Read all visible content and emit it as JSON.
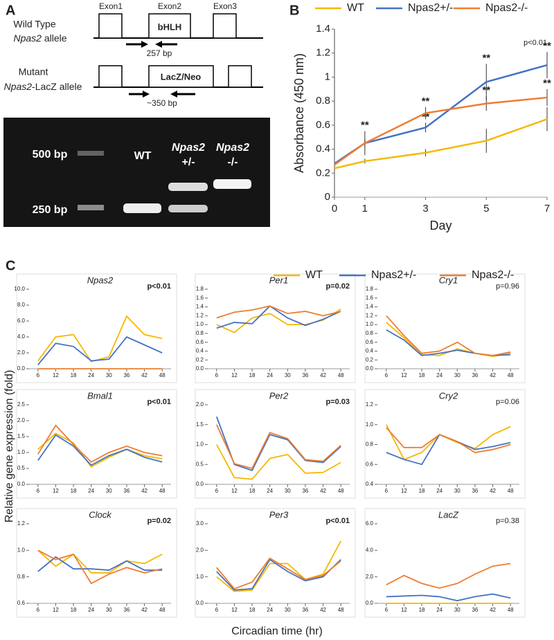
{
  "panel_labels": [
    "A",
    "B",
    "C"
  ],
  "diagram": {
    "exons": [
      "Exon1",
      "Exon2",
      "Exon3"
    ],
    "domain": "bHLH",
    "wt_line1": "Wild Type",
    "wt_gene": "Npas2",
    "wt_suffix": " allele",
    "wt_product": "257 bp",
    "mut_line1": "Mutant",
    "mut_gene": "Npas2",
    "mut_suffix": "-LacZ allele",
    "mut_cassette": "LacZ/Neo",
    "mut_product": "~350 bp"
  },
  "gel": {
    "ladder": [
      "500 bp",
      "250 bp"
    ],
    "lane_wt": "WT",
    "lane_het_gene": "Npas2",
    "lane_het": "+/-",
    "lane_ko_gene": "Npas2",
    "lane_ko": "-/-"
  },
  "panel_c": {
    "ylabel": "Relative gene expression (fold)",
    "xlabel": "Circadian time (hr)"
  },
  "chart_data": [
    {
      "type": "line",
      "xlabel": "Day",
      "ylabel": "Absorbance (450 nm)",
      "annotation": "p<0.01",
      "x": [
        0,
        1,
        3,
        5,
        7
      ],
      "xlim": [
        0,
        7
      ],
      "xticks": [
        0,
        1,
        3,
        5,
        7
      ],
      "ylim": [
        0,
        1.4
      ],
      "yticks": [
        0,
        0.2,
        0.4,
        0.6,
        0.8,
        1,
        1.2,
        1.4
      ],
      "series": [
        {
          "name": "WT",
          "color": "#f5b800",
          "values": [
            0.24,
            0.3,
            0.37,
            0.47,
            0.65
          ],
          "errors": [
            0.01,
            0.02,
            0.03,
            0.1,
            0.1
          ]
        },
        {
          "name": "Npas2+/-",
          "color": "#4472c4",
          "values": [
            0.28,
            0.45,
            0.58,
            0.96,
            1.1
          ],
          "errors": [
            0.01,
            0.1,
            0.04,
            0.15,
            0.11
          ],
          "sig": [
            null,
            "**",
            "**",
            "**",
            "**"
          ]
        },
        {
          "name": "Npas2-/-",
          "color": "#ed7d31",
          "values": [
            0.27,
            0.45,
            0.7,
            0.78,
            0.83
          ],
          "errors": [
            0.01,
            0.03,
            0.05,
            0.06,
            0.07
          ],
          "sig": [
            null,
            null,
            "**",
            "**",
            "**"
          ]
        }
      ]
    },
    {
      "type": "line",
      "title": "Npas2",
      "annotation": "p<0.01",
      "annotation_bold": true,
      "x": [
        6,
        12,
        18,
        24,
        30,
        36,
        42,
        48
      ],
      "xlim": [
        3,
        51
      ],
      "xticks": [
        6,
        12,
        18,
        24,
        30,
        36,
        42,
        48
      ],
      "ylim": [
        0,
        10
      ],
      "yticks": [
        {
          "value": 0,
          "label": "0.0"
        },
        {
          "value": 2,
          "label": "2.0"
        },
        {
          "value": 4,
          "label": "4.0"
        },
        {
          "value": 6,
          "label": "6.0"
        },
        {
          "value": 8,
          "label": "8.0"
        },
        {
          "value": 10,
          "label": "10.0"
        }
      ],
      "series": [
        {
          "name": "WT",
          "color": "#f5b800",
          "values": [
            1.0,
            4.0,
            4.3,
            0.9,
            1.5,
            6.6,
            4.3,
            3.8
          ]
        },
        {
          "name": "Npas2+/-",
          "color": "#4472c4",
          "values": [
            0.5,
            3.2,
            2.8,
            1.0,
            1.2,
            4.0,
            3.0,
            2.0
          ]
        },
        {
          "name": "Npas2-/-",
          "color": "#ed7d31",
          "values": [
            0,
            0,
            0,
            0,
            0,
            0,
            0,
            0
          ]
        }
      ]
    },
    {
      "type": "line",
      "title": "Per1",
      "annotation": "p=0.02",
      "annotation_bold": true,
      "x": [
        6,
        12,
        18,
        24,
        30,
        36,
        42,
        48
      ],
      "xlim": [
        3,
        51
      ],
      "xticks": [
        6,
        12,
        18,
        24,
        30,
        36,
        42,
        48
      ],
      "ylim": [
        0,
        1.8
      ],
      "yticks": [
        {
          "value": 0,
          "label": "0.0"
        },
        0.2,
        0.4,
        0.6,
        0.8,
        {
          "value": 1,
          "label": "1.0"
        },
        1.2,
        1.4,
        1.6,
        1.8
      ],
      "series": [
        {
          "color": "#f5b800",
          "values": [
            1.0,
            0.82,
            1.15,
            1.25,
            1.0,
            1.0,
            1.1,
            1.35
          ]
        },
        {
          "color": "#4472c4",
          "values": [
            0.92,
            1.05,
            1.02,
            1.42,
            1.15,
            0.98,
            1.12,
            1.3
          ]
        },
        {
          "color": "#ed7d31",
          "values": [
            1.15,
            1.28,
            1.33,
            1.42,
            1.25,
            1.3,
            1.2,
            1.3
          ]
        }
      ]
    },
    {
      "type": "line",
      "title": "Cry1",
      "annotation": "p=0.96",
      "annotation_bold": false,
      "x": [
        6,
        12,
        18,
        24,
        30,
        36,
        42,
        48
      ],
      "xlim": [
        3,
        51
      ],
      "xticks": [
        6,
        12,
        18,
        24,
        30,
        36,
        42,
        48
      ],
      "ylim": [
        0,
        1.8
      ],
      "yticks": [
        {
          "value": 0,
          "label": "0.0"
        },
        0.2,
        0.4,
        0.6,
        0.8,
        {
          "value": 1,
          "label": "1.0"
        },
        1.2,
        1.4,
        1.6,
        1.8
      ],
      "series": [
        {
          "color": "#f5b800",
          "values": [
            1.05,
            0.7,
            0.32,
            0.3,
            0.45,
            0.35,
            0.28,
            0.35
          ]
        },
        {
          "color": "#4472c4",
          "values": [
            0.88,
            0.65,
            0.3,
            0.35,
            0.42,
            0.35,
            0.3,
            0.32
          ]
        },
        {
          "color": "#ed7d31",
          "values": [
            1.2,
            0.75,
            0.35,
            0.4,
            0.6,
            0.35,
            0.3,
            0.38
          ]
        }
      ]
    },
    {
      "type": "line",
      "title": "Bmal1",
      "annotation": "p<0.01",
      "annotation_bold": true,
      "x": [
        6,
        12,
        18,
        24,
        30,
        36,
        42,
        48
      ],
      "xlim": [
        3,
        51
      ],
      "xticks": [
        6,
        12,
        18,
        24,
        30,
        36,
        42,
        48
      ],
      "ylim": [
        0,
        2.5
      ],
      "yticks": [
        {
          "value": 0,
          "label": "0.0"
        },
        0.5,
        {
          "value": 1,
          "label": "1.0"
        },
        1.5,
        {
          "value": 2,
          "label": "2.0"
        },
        2.5
      ],
      "series": [
        {
          "color": "#f5b800",
          "values": [
            1.1,
            1.6,
            1.3,
            0.55,
            0.85,
            1.1,
            0.9,
            0.8
          ]
        },
        {
          "color": "#4472c4",
          "values": [
            0.75,
            1.55,
            1.2,
            0.6,
            0.9,
            1.1,
            0.85,
            0.7
          ]
        },
        {
          "color": "#ed7d31",
          "values": [
            0.95,
            1.85,
            1.25,
            0.7,
            1.0,
            1.2,
            1.0,
            0.9
          ]
        }
      ]
    },
    {
      "type": "line",
      "title": "Per2",
      "annotation": "p=0.03",
      "annotation_bold": true,
      "x": [
        6,
        12,
        18,
        24,
        30,
        36,
        42,
        48
      ],
      "xlim": [
        3,
        51
      ],
      "xticks": [
        6,
        12,
        18,
        24,
        30,
        36,
        42,
        48
      ],
      "ylim": [
        0,
        2
      ],
      "yticks": [
        {
          "value": 0,
          "label": "0.0"
        },
        0.5,
        {
          "value": 1,
          "label": "1.0"
        },
        1.5,
        {
          "value": 2,
          "label": "2.0"
        }
      ],
      "series": [
        {
          "color": "#f5b800",
          "values": [
            1.0,
            0.17,
            0.13,
            0.65,
            0.75,
            0.28,
            0.3,
            0.55
          ]
        },
        {
          "color": "#4472c4",
          "values": [
            1.7,
            0.5,
            0.35,
            1.25,
            1.12,
            0.6,
            0.55,
            0.95
          ]
        },
        {
          "color": "#ed7d31",
          "values": [
            1.5,
            0.52,
            0.4,
            1.3,
            1.15,
            0.62,
            0.58,
            0.98
          ]
        }
      ]
    },
    {
      "type": "line",
      "title": "Cry2",
      "annotation": "p=0.06",
      "annotation_bold": false,
      "x": [
        6,
        12,
        18,
        24,
        30,
        36,
        42,
        48
      ],
      "xlim": [
        3,
        51
      ],
      "xticks": [
        6,
        12,
        18,
        24,
        30,
        36,
        42,
        48
      ],
      "ylim": [
        0.4,
        1.2
      ],
      "yticks": [
        0.4,
        0.6,
        0.8,
        {
          "value": 1,
          "label": "1.0"
        },
        1.2
      ],
      "series": [
        {
          "color": "#f5b800",
          "values": [
            1.0,
            0.65,
            0.72,
            0.9,
            0.82,
            0.76,
            0.9,
            0.98
          ]
        },
        {
          "color": "#4472c4",
          "values": [
            0.72,
            0.65,
            0.6,
            0.9,
            0.83,
            0.75,
            0.78,
            0.82
          ]
        },
        {
          "color": "#ed7d31",
          "values": [
            0.97,
            0.77,
            0.77,
            0.9,
            0.83,
            0.72,
            0.75,
            0.8
          ]
        }
      ]
    },
    {
      "type": "line",
      "title": "Clock",
      "annotation": "p=0.02",
      "annotation_bold": true,
      "x": [
        6,
        12,
        18,
        24,
        30,
        36,
        42,
        48
      ],
      "xlim": [
        3,
        51
      ],
      "xticks": [
        6,
        12,
        18,
        24,
        30,
        36,
        42,
        48
      ],
      "ylim": [
        0.6,
        1.2
      ],
      "yticks": [
        0.6,
        0.8,
        {
          "value": 1,
          "label": "1.0"
        },
        1.2
      ],
      "series": [
        {
          "color": "#f5b800",
          "values": [
            1.0,
            0.88,
            0.97,
            0.83,
            0.83,
            0.92,
            0.9,
            0.97
          ]
        },
        {
          "color": "#4472c4",
          "values": [
            0.84,
            0.95,
            0.86,
            0.86,
            0.85,
            0.92,
            0.85,
            0.85
          ]
        },
        {
          "color": "#ed7d31",
          "values": [
            1.0,
            0.93,
            0.97,
            0.75,
            0.82,
            0.87,
            0.83,
            0.86
          ]
        }
      ]
    },
    {
      "type": "line",
      "title": "Per3",
      "annotation": "p<0.01",
      "annotation_bold": true,
      "x": [
        6,
        12,
        18,
        24,
        30,
        36,
        42,
        48
      ],
      "xlim": [
        3,
        51
      ],
      "xticks": [
        6,
        12,
        18,
        24,
        30,
        36,
        42,
        48
      ],
      "ylim": [
        0,
        3
      ],
      "yticks": [
        {
          "value": 0,
          "label": "0.0"
        },
        {
          "value": 1,
          "label": "1.0"
        },
        {
          "value": 2,
          "label": "2.0"
        },
        {
          "value": 3,
          "label": "3.0"
        }
      ],
      "series": [
        {
          "color": "#f5b800",
          "values": [
            1.0,
            0.45,
            0.5,
            1.5,
            1.5,
            0.9,
            1.1,
            2.35
          ]
        },
        {
          "color": "#4472c4",
          "values": [
            1.2,
            0.5,
            0.55,
            1.65,
            1.2,
            0.85,
            1.0,
            1.65
          ]
        },
        {
          "color": "#ed7d31",
          "values": [
            1.35,
            0.55,
            0.8,
            1.7,
            1.3,
            0.9,
            1.05,
            1.6
          ]
        }
      ]
    },
    {
      "type": "line",
      "title": "LacZ",
      "annotation": "p=0.38",
      "annotation_bold": false,
      "x": [
        6,
        12,
        18,
        24,
        30,
        36,
        42,
        48
      ],
      "xlim": [
        3,
        51
      ],
      "xticks": [
        6,
        12,
        18,
        24,
        30,
        36,
        42,
        48
      ],
      "ylim": [
        0,
        6
      ],
      "yticks": [
        {
          "value": 0,
          "label": "0.0"
        },
        {
          "value": 2,
          "label": "2.0"
        },
        {
          "value": 4,
          "label": "4.0"
        },
        {
          "value": 6,
          "label": "6.0"
        }
      ],
      "series": [
        {
          "color": "#f5b800",
          "values": [
            0,
            0,
            0,
            0,
            0,
            0,
            0,
            0
          ]
        },
        {
          "color": "#4472c4",
          "values": [
            0.5,
            0.55,
            0.6,
            0.5,
            0.2,
            0.5,
            0.7,
            0.4
          ]
        },
        {
          "color": "#ed7d31",
          "values": [
            1.4,
            2.1,
            1.5,
            1.15,
            1.5,
            2.2,
            2.8,
            3.0
          ]
        }
      ]
    }
  ]
}
